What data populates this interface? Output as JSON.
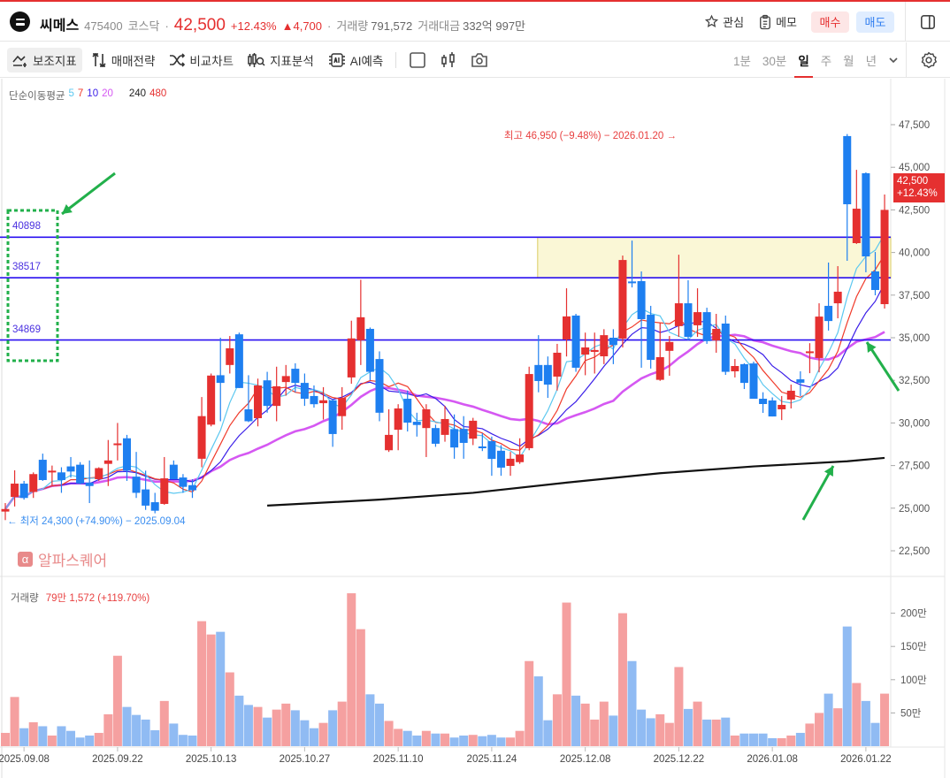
{
  "header": {
    "name": "씨메스",
    "code": "475400",
    "market": "코스닥",
    "dot": "·",
    "price": "42,500",
    "change_pct": "+12.43%",
    "change_abs": "▲4,700",
    "volume_label": "거래량",
    "volume": "791,572",
    "amount_label": "거래대금",
    "amount": "332억 997만",
    "watch": "관심",
    "memo": "메모",
    "buy": "매수",
    "sell": "매도"
  },
  "toolbar": {
    "tools": [
      "보조지표",
      "매매전략",
      "비교차트",
      "지표분석",
      "AI예측"
    ],
    "periods": [
      "1분",
      "30분",
      "일",
      "주",
      "월",
      "년"
    ],
    "active_period": "일"
  },
  "ma_legend": {
    "label": "단순이동평균",
    "periods": [
      "5",
      "7",
      "10",
      "20",
      "240",
      "480"
    ]
  },
  "colors": {
    "up": "#e53030",
    "down": "#1e7ff0",
    "vol_up": "#f5a0a0",
    "vol_down": "#90bbf3",
    "ma5": "#5cc8f0",
    "ma7": "#f03a2a",
    "ma10": "#3a1ee8",
    "ma20": "#d558f2",
    "ma240": "#111111",
    "level": "#2a10f0",
    "box": "#faf7d6",
    "annotation": "#22b04b"
  },
  "annotations": {
    "high": "최고 46,950 (−9.48%) − 2026.01.20 →",
    "low": "← 최저 24,300 (+74.90%) − 2025.09.04",
    "watermark": "알파스퀘어",
    "watermark_icon": "α",
    "current_price": "42,500",
    "current_change": "+12.43%",
    "volume_label": "거래량",
    "volume_value": "79만 1,572 (+119.70%)"
  },
  "chart_data": {
    "type": "candlestick",
    "levels": [
      40898,
      38517,
      34869
    ],
    "level_labels": [
      "40898",
      "38517",
      "34869"
    ],
    "zone": {
      "from_index": 57,
      "low": 38517,
      "high": 40898
    },
    "y_ticks": [
      47500,
      45000,
      42500,
      40000,
      37500,
      35000,
      32500,
      30000,
      27500,
      25000,
      22500
    ],
    "y_tick_labels": [
      "47,500",
      "45,000",
      "42,500",
      "40,000",
      "37,500",
      "35,000",
      "32,500",
      "30,000",
      "27,500",
      "25,000",
      "22,500"
    ],
    "ylim": [
      22500,
      47500
    ],
    "vol_ticks": [
      200,
      150,
      100,
      50
    ],
    "vol_tick_labels": [
      "200만",
      "150만",
      "100만",
      "50만"
    ],
    "x_labels": [
      {
        "i": 2,
        "t": "2025.09.08"
      },
      {
        "i": 12,
        "t": "2025.09.22"
      },
      {
        "i": 22,
        "t": "2025.10.13"
      },
      {
        "i": 32,
        "t": "2025.10.27"
      },
      {
        "i": 42,
        "t": "2025.11.10"
      },
      {
        "i": 52,
        "t": "2025.11.24"
      },
      {
        "i": 62,
        "t": "2025.12.08"
      },
      {
        "i": 72,
        "t": "2025.12.22"
      },
      {
        "i": 82,
        "t": "2026.01.08"
      },
      {
        "i": 92,
        "t": "2026.01.22"
      }
    ],
    "ohlc": [
      [
        24800,
        25300,
        24300,
        24950
      ],
      [
        25660,
        27220,
        25100,
        26440
      ],
      [
        26440,
        26600,
        25500,
        25600
      ],
      [
        25950,
        27100,
        25600,
        27000
      ],
      [
        27840,
        28200,
        26600,
        26650
      ],
      [
        27100,
        27500,
        26300,
        27200
      ],
      [
        27100,
        27400,
        25900,
        26650
      ],
      [
        27450,
        28000,
        26800,
        27150
      ],
      [
        27550,
        27700,
        26400,
        26450
      ],
      [
        26500,
        27800,
        25300,
        26300
      ],
      [
        26700,
        27400,
        26600,
        27350
      ],
      [
        27600,
        29000,
        26300,
        27800
      ],
      [
        28700,
        30000,
        27800,
        28800
      ],
      [
        29100,
        29300,
        26600,
        27200
      ],
      [
        26850,
        28300,
        25600,
        25900
      ],
      [
        26100,
        27200,
        24900,
        25150
      ],
      [
        25350,
        25900,
        24700,
        24850
      ],
      [
        25250,
        28000,
        25200,
        26750
      ],
      [
        27550,
        27800,
        26700,
        26700
      ],
      [
        26800,
        27000,
        25900,
        26250
      ],
      [
        26350,
        26700,
        25600,
        26050
      ],
      [
        27900,
        31520,
        27400,
        30400
      ],
      [
        29900,
        32900,
        29800,
        32780
      ],
      [
        32800,
        35000,
        30100,
        32350
      ],
      [
        33400,
        35100,
        32900,
        34380
      ],
      [
        35200,
        35300,
        32050,
        32050
      ],
      [
        30800,
        32800,
        30050,
        30100
      ],
      [
        30280,
        32600,
        29800,
        32200
      ],
      [
        32500,
        33000,
        30600,
        31000
      ],
      [
        31000,
        33300,
        30100,
        32150
      ],
      [
        32400,
        33400,
        31600,
        32750
      ],
      [
        33180,
        33500,
        31800,
        32350
      ],
      [
        32350,
        32900,
        31000,
        31420
      ],
      [
        31580,
        32200,
        30900,
        31100
      ],
      [
        31160,
        32100,
        30200,
        31330
      ],
      [
        31330,
        31400,
        28600,
        29350
      ],
      [
        30400,
        32100,
        29600,
        31470
      ],
      [
        32670,
        36000,
        32300,
        34960
      ],
      [
        34850,
        38400,
        33400,
        36200
      ],
      [
        35520,
        35600,
        32500,
        33000
      ],
      [
        33750,
        34200,
        30100,
        30600
      ],
      [
        28400,
        30800,
        28300,
        29300
      ],
      [
        29600,
        31100,
        28400,
        30850
      ],
      [
        31420,
        31900,
        29500,
        30020
      ],
      [
        30070,
        30600,
        29200,
        29880
      ],
      [
        29700,
        31100,
        28000,
        30800
      ],
      [
        29700,
        29900,
        28600,
        28780
      ],
      [
        29300,
        31000,
        28900,
        30230
      ],
      [
        29640,
        30500,
        27900,
        28560
      ],
      [
        29650,
        30400,
        27900,
        28830
      ],
      [
        29080,
        30300,
        28700,
        30130
      ],
      [
        28620,
        29400,
        28350,
        28520
      ],
      [
        28930,
        29200,
        26900,
        27890
      ],
      [
        28370,
        28700,
        26900,
        27380
      ],
      [
        27480,
        28300,
        26900,
        27900
      ],
      [
        27700,
        29100,
        27600,
        28150
      ],
      [
        28520,
        33300,
        28400,
        32870
      ],
      [
        33400,
        35150,
        31800,
        32460
      ],
      [
        33400,
        33900,
        31470,
        32250
      ],
      [
        32720,
        34640,
        31900,
        34120
      ],
      [
        34900,
        37900,
        33900,
        36250
      ],
      [
        36300,
        36400,
        33000,
        33240
      ],
      [
        34010,
        35300,
        32800,
        34430
      ],
      [
        34170,
        35300,
        32900,
        34280
      ],
      [
        33910,
        35500,
        33450,
        35150
      ],
      [
        35000,
        35500,
        33450,
        34570
      ],
      [
        34950,
        39820,
        34430,
        39560
      ],
      [
        38300,
        40700,
        37950,
        38200
      ],
      [
        38320,
        38890,
        33240,
        36090
      ],
      [
        36350,
        36870,
        33190,
        33700
      ],
      [
        32530,
        35880,
        32470,
        33860
      ],
      [
        34230,
        35100,
        32770,
        34750
      ],
      [
        35680,
        39870,
        35050,
        37020
      ],
      [
        37020,
        38370,
        34850,
        35050
      ],
      [
        35730,
        37900,
        35050,
        36500
      ],
      [
        36500,
        36760,
        34640,
        34800
      ],
      [
        34840,
        36400,
        34120,
        35520
      ],
      [
        35830,
        36300,
        32820,
        33000
      ],
      [
        33030,
        33750,
        32670,
        33340
      ],
      [
        33450,
        33500,
        31990,
        32350
      ],
      [
        33490,
        33600,
        31420,
        31420
      ],
      [
        31420,
        31800,
        30590,
        31110
      ],
      [
        31320,
        31500,
        30380,
        30380
      ],
      [
        30800,
        31580,
        30170,
        31060
      ],
      [
        31370,
        32250,
        30850,
        31890
      ],
      [
        32560,
        33030,
        31580,
        32360
      ],
      [
        34100,
        34680,
        32920,
        34200
      ],
      [
        33810,
        37020,
        32970,
        36240
      ],
      [
        36870,
        39410,
        35420,
        35980
      ],
      [
        37020,
        39200,
        36140,
        37700
      ],
      [
        46830,
        46950,
        39510,
        42830
      ],
      [
        40550,
        44850,
        40500,
        42570
      ],
      [
        44650,
        44700,
        38840,
        39770
      ],
      [
        38890,
        40030,
        37490,
        37800
      ],
      [
        36970,
        43400,
        36710,
        42500
      ]
    ],
    "volume_man": [
      20,
      74,
      27,
      36,
      30,
      16,
      30,
      23,
      13,
      16,
      20,
      48,
      136,
      59,
      47,
      40,
      24,
      68,
      34,
      17,
      16,
      188,
      168,
      172,
      111,
      76,
      62,
      59,
      43,
      55,
      64,
      54,
      39,
      27,
      35,
      54,
      67,
      230,
      176,
      78,
      64,
      38,
      26,
      23,
      16,
      23,
      19,
      19,
      13,
      16,
      17,
      15,
      17,
      13,
      13,
      23,
      128,
      105,
      39,
      78,
      216,
      76,
      64,
      40,
      67,
      46,
      200,
      128,
      55,
      42,
      48,
      35,
      119,
      56,
      67,
      40,
      40,
      43,
      16,
      19,
      19,
      19,
      12,
      12,
      16,
      20,
      34,
      50,
      79,
      57,
      180,
      95,
      68,
      35,
      79
    ],
    "ma240": [
      [
        28,
        25150
      ],
      [
        40,
        25500
      ],
      [
        50,
        25900
      ],
      [
        60,
        26500
      ],
      [
        70,
        27050
      ],
      [
        80,
        27450
      ],
      [
        90,
        27750
      ],
      [
        94,
        27950
      ]
    ]
  }
}
